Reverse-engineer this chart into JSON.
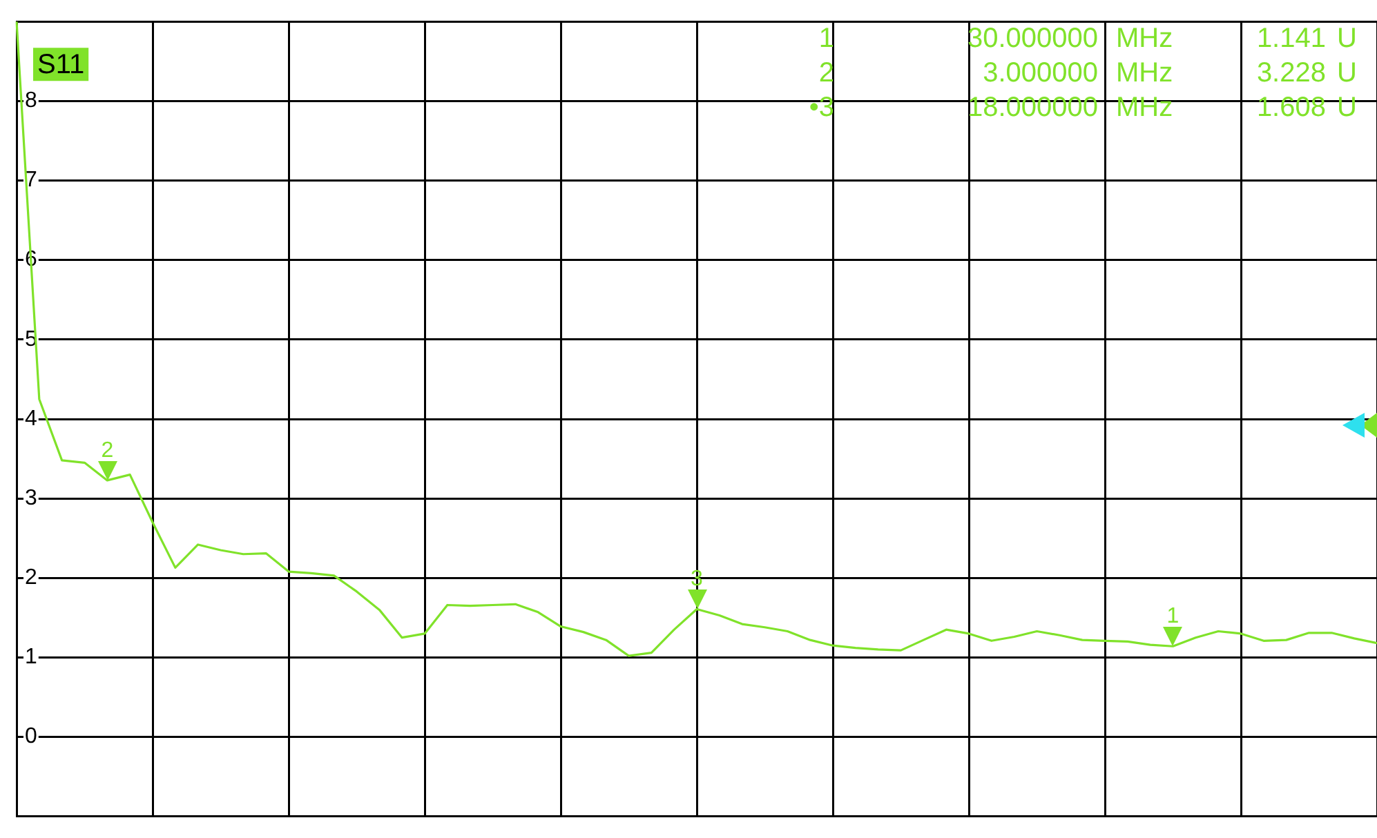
{
  "chart_data": {
    "type": "line",
    "title": "S11",
    "categories": [
      null,
      null,
      null,
      null,
      null,
      null,
      null,
      null,
      null,
      null,
      null,
      null,
      null,
      null,
      null,
      null,
      null,
      null,
      null,
      null,
      null,
      null,
      null,
      null,
      null,
      null,
      null,
      null,
      null,
      null,
      null,
      null,
      null,
      null,
      null,
      null,
      null,
      null,
      null,
      null,
      null,
      null,
      null,
      null,
      null,
      null,
      null,
      null,
      null,
      null,
      null,
      null,
      null,
      null,
      null,
      null,
      null,
      null,
      null,
      null,
      null
    ],
    "series": [
      {
        "color": "#80e22a",
        "values": [
          9.0,
          4.25,
          3.48,
          3.45,
          3.228,
          3.3,
          2.7,
          2.13,
          2.42,
          2.35,
          2.3,
          2.31,
          2.08,
          2.06,
          2.03,
          1.83,
          1.6,
          1.25,
          1.3,
          1.66,
          1.65,
          1.66,
          1.67,
          1.57,
          1.39,
          1.32,
          1.22,
          1.02,
          1.06,
          1.35,
          1.608,
          1.53,
          1.42,
          1.38,
          1.33,
          1.22,
          1.15,
          1.12,
          1.1,
          1.09,
          1.22,
          1.35,
          1.3,
          1.21,
          1.26,
          1.33,
          1.28,
          1.22,
          1.21,
          1.2,
          1.16,
          1.141,
          1.25,
          1.33,
          1.3,
          1.21,
          1.22,
          1.31,
          1.31,
          1.24,
          1.18
        ]
      }
    ],
    "ylim": [
      -1,
      9
    ],
    "yticks": [
      0,
      1,
      2,
      3,
      4,
      5,
      6,
      7,
      8,
      {
        "value": 9,
        "label": null
      }
    ],
    "tick_labels": "y",
    "grid": true,
    "legend": false,
    "marker": "none",
    "annotations": [
      {
        "text": "1",
        "y": 1.141
      },
      {
        "text": "2",
        "y": 3.228
      },
      {
        "text": "3",
        "y": 1.608
      },
      "1 30.000000 MHz 1.141 U",
      "2 3.000000 MHz 3.228 U",
      "•3 18.000000 MHz 1.608 U"
    ]
  }
}
